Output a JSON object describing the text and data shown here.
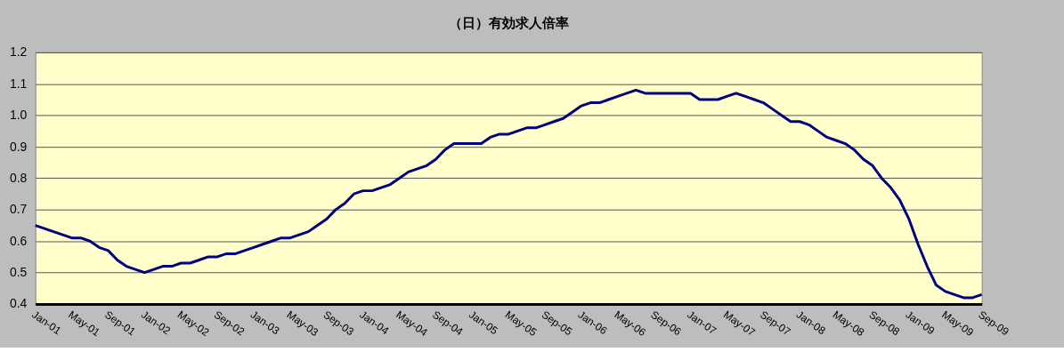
{
  "chart_data": {
    "type": "line",
    "title": "（日）有効求人倍率",
    "categories": [
      "Jan-01",
      null,
      null,
      null,
      "May-01",
      null,
      null,
      null,
      "Sep-01",
      null,
      null,
      null,
      "Jan-02",
      null,
      null,
      null,
      "May-02",
      null,
      null,
      null,
      "Sep-02",
      null,
      null,
      null,
      "Jan-03",
      null,
      null,
      null,
      "May-03",
      null,
      null,
      null,
      "Sep-03",
      null,
      null,
      null,
      "Jan-04",
      null,
      null,
      null,
      "May-04",
      null,
      null,
      null,
      "Sep-04",
      null,
      null,
      null,
      "Jan-05",
      null,
      null,
      null,
      "May-05",
      null,
      null,
      null,
      "Sep-05",
      null,
      null,
      null,
      "Jan-06",
      null,
      null,
      null,
      "May-06",
      null,
      null,
      null,
      "Sep-06",
      null,
      null,
      null,
      "Jan-07",
      null,
      null,
      null,
      "May-07",
      null,
      null,
      null,
      "Sep-07",
      null,
      null,
      null,
      "Jan-08",
      null,
      null,
      null,
      "May-08",
      null,
      null,
      null,
      "Sep-08",
      null,
      null,
      null,
      "Jan-09",
      null,
      null,
      null,
      "May-09",
      null,
      null,
      null,
      "Sep-09"
    ],
    "series": [
      {
        "color": "#000080",
        "values": [
          0.65,
          0.64,
          0.63,
          0.62,
          0.61,
          0.61,
          0.6,
          0.58,
          0.57,
          0.54,
          0.52,
          0.51,
          0.5,
          0.51,
          0.52,
          0.52,
          0.53,
          0.53,
          0.54,
          0.55,
          0.55,
          0.56,
          0.56,
          0.57,
          0.58,
          0.59,
          0.6,
          0.61,
          0.61,
          0.62,
          0.63,
          0.65,
          0.67,
          0.7,
          0.72,
          0.75,
          0.76,
          0.76,
          0.77,
          0.78,
          0.8,
          0.82,
          0.83,
          0.84,
          0.86,
          0.89,
          0.91,
          0.91,
          0.91,
          0.91,
          0.93,
          0.94,
          0.94,
          0.95,
          0.96,
          0.96,
          0.97,
          0.98,
          0.99,
          1.01,
          1.03,
          1.04,
          1.04,
          1.05,
          1.06,
          1.07,
          1.08,
          1.07,
          1.07,
          1.07,
          1.07,
          1.07,
          1.07,
          1.05,
          1.05,
          1.05,
          1.06,
          1.07,
          1.06,
          1.05,
          1.04,
          1.02,
          1.0,
          0.98,
          0.98,
          0.97,
          0.95,
          0.93,
          0.92,
          0.91,
          0.89,
          0.86,
          0.84,
          0.8,
          0.77,
          0.73,
          0.67,
          0.59,
          0.52,
          0.46,
          0.44,
          0.43,
          0.42,
          0.42,
          0.43
        ]
      }
    ],
    "ylim": [
      0.4,
      1.2
    ],
    "yticks": [
      0.4,
      0.5,
      0.6,
      0.7,
      0.8,
      0.9,
      {
        "value": 1.0,
        "label": "1.0"
      },
      1.1,
      1.2
    ],
    "grid": "y",
    "legend": false,
    "marker": "none",
    "line_style": "solid"
  }
}
